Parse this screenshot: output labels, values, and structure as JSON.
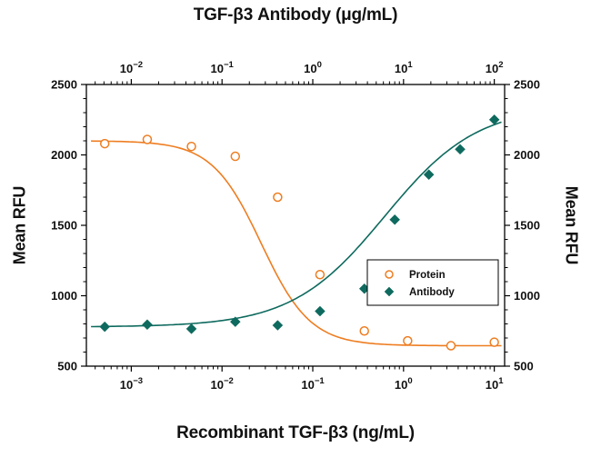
{
  "figure": {
    "background": "#ffffff",
    "text_color": "#111111"
  },
  "chart_data": {
    "type": "scatter",
    "title_top": "TGF-β3 Antibody (μg/mL)",
    "xlabel_bottom": "Recombinant TGF-β3 (ng/mL)",
    "ylabel_left": "Mean RFU",
    "ylabel_right": "Mean RFU",
    "x_scale": "log",
    "x_range": [
      0.00032,
      13
    ],
    "curve_range": [
      0.00036,
      12
    ],
    "x_ticks_bottom_exponents": [
      -3,
      -2,
      -1,
      0,
      1
    ],
    "x_ticks_top_exponents": [
      -2,
      -1,
      0,
      1,
      2
    ],
    "top_axis_decade_shift": 1,
    "ylim": [
      500,
      2500
    ],
    "y_ticks": [
      500,
      1000,
      1500,
      2000,
      2500
    ],
    "y_minor_step": 100,
    "axis_color": "#000000",
    "series": [
      {
        "name": "Protein",
        "axis": "bottom",
        "marker": "open-circle",
        "color": "#EE7D21",
        "x": [
          0.00051,
          0.0015,
          0.0046,
          0.014,
          0.041,
          0.12,
          0.37,
          1.11,
          3.33,
          10
        ],
        "y": [
          2080,
          2110,
          2060,
          1990,
          1700,
          1150,
          750,
          680,
          645,
          670
        ],
        "fit": {
          "model": "4PL",
          "top": 2100,
          "bottom": 645,
          "ec50": 0.027,
          "hill": 1.6,
          "direction": "decreasing"
        }
      },
      {
        "name": "Antibody",
        "axis": "top",
        "marker": "filled-diamond",
        "color": "#0E6A5E",
        "x": [
          0.0051,
          0.015,
          0.046,
          0.14,
          0.41,
          1.2,
          3.7,
          8,
          19,
          42,
          100
        ],
        "y": [
          780,
          795,
          765,
          815,
          790,
          890,
          1050,
          1540,
          1860,
          2040,
          2250
        ],
        "fit": {
          "model": "4PL",
          "top": 2350,
          "bottom": 778,
          "ec50": 6.2,
          "hill": 0.85,
          "direction": "increasing"
        }
      }
    ],
    "legend": {
      "entries": [
        "Protein",
        "Antibody"
      ],
      "position": "right-middle"
    }
  }
}
